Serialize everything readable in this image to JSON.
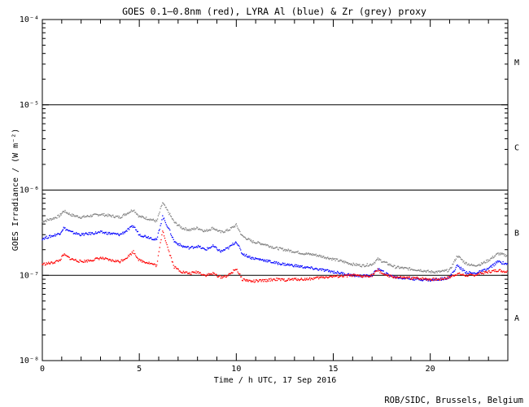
{
  "chart_data": {
    "type": "scatter",
    "title": "GOES 0.1–0.8nm (red), LYRA Al (blue) & Zr (grey) proxy",
    "xlabel": "Time / h UTC, 17 Sep 2016",
    "ylabel": "GOES Irradiance / (W m⁻²)",
    "credit": "ROB/SIDC, Brussels, Belgium",
    "xlim": [
      0,
      24
    ],
    "ylim": [
      1e-08,
      0.0001
    ],
    "yscale": "log",
    "x_ticks": [
      0,
      5,
      10,
      15,
      20
    ],
    "x_tick_labels": [
      "0",
      "5",
      "10",
      "15",
      "20"
    ],
    "y_ticks": [
      1e-08,
      1e-07,
      1e-06,
      1e-05,
      0.0001
    ],
    "y_tick_labels": [
      "10⁻⁸",
      "10⁻⁷",
      "10⁻⁶",
      "10⁻⁵",
      "10⁻⁴"
    ],
    "reference_lines": [
      1e-07,
      1e-06,
      1e-05
    ],
    "flare_classes": [
      {
        "label": "A",
        "y": 3.2e-08
      },
      {
        "label": "B",
        "y": 3.2e-07
      },
      {
        "label": "C",
        "y": 3.2e-06
      },
      {
        "label": "M",
        "y": 3.2e-05
      }
    ],
    "series": [
      {
        "color": "#808080",
        "x": [
          0,
          0.5,
          0.9,
          1.1,
          1.5,
          2.0,
          2.5,
          3.0,
          3.5,
          4.0,
          4.4,
          4.7,
          5.0,
          5.5,
          5.9,
          6.2,
          6.5,
          6.8,
          7.2,
          7.6,
          8.0,
          8.4,
          8.8,
          9.2,
          9.6,
          10.0,
          10.3,
          10.8,
          11.5,
          12.0,
          12.5,
          13.0,
          13.5,
          14.0,
          14.5,
          15.0,
          15.5,
          16.0,
          16.5,
          17.0,
          17.3,
          17.7,
          18.2,
          18.8,
          19.5,
          20.0,
          20.5,
          21.0,
          21.4,
          21.8,
          22.2,
          22.6,
          23.0,
          23.5,
          24.0
        ],
        "y": [
          4.3e-07,
          4.6e-07,
          5e-07,
          5.7e-07,
          5.1e-07,
          4.8e-07,
          5e-07,
          5.2e-07,
          5e-07,
          4.8e-07,
          5.4e-07,
          5.9e-07,
          4.9e-07,
          4.6e-07,
          4.3e-07,
          7.1e-07,
          5.5e-07,
          4.2e-07,
          3.6e-07,
          3.4e-07,
          3.6e-07,
          3.3e-07,
          3.6e-07,
          3.2e-07,
          3.4e-07,
          3.9e-07,
          2.9e-07,
          2.5e-07,
          2.3e-07,
          2.1e-07,
          2e-07,
          1.9e-07,
          1.8e-07,
          1.75e-07,
          1.65e-07,
          1.55e-07,
          1.45e-07,
          1.35e-07,
          1.3e-07,
          1.35e-07,
          1.55e-07,
          1.4e-07,
          1.25e-07,
          1.2e-07,
          1.15e-07,
          1.1e-07,
          1.1e-07,
          1.15e-07,
          1.7e-07,
          1.4e-07,
          1.3e-07,
          1.35e-07,
          1.5e-07,
          1.8e-07,
          1.7e-07
        ]
      },
      {
        "color": "#0000ff",
        "x": [
          0,
          0.5,
          0.9,
          1.1,
          1.5,
          2.0,
          2.5,
          3.0,
          3.5,
          4.0,
          4.4,
          4.7,
          5.0,
          5.5,
          5.9,
          6.2,
          6.5,
          6.8,
          7.2,
          7.6,
          8.0,
          8.4,
          8.8,
          9.2,
          9.6,
          10.0,
          10.3,
          10.8,
          11.5,
          12.0,
          12.5,
          13.0,
          13.5,
          14.0,
          14.5,
          15.0,
          15.5,
          16.0,
          16.5,
          17.0,
          17.3,
          17.7,
          18.2,
          18.8,
          19.5,
          20.0,
          20.5,
          21.0,
          21.4,
          21.8,
          22.2,
          22.6,
          23.0,
          23.5,
          24.0
        ],
        "y": [
          2.7e-07,
          2.9e-07,
          3.1e-07,
          3.6e-07,
          3.2e-07,
          3e-07,
          3.1e-07,
          3.2e-07,
          3.1e-07,
          3e-07,
          3.4e-07,
          3.8e-07,
          3e-07,
          2.8e-07,
          2.6e-07,
          4.9e-07,
          3.6e-07,
          2.5e-07,
          2.2e-07,
          2.1e-07,
          2.2e-07,
          2e-07,
          2.2e-07,
          1.9e-07,
          2.1e-07,
          2.5e-07,
          1.8e-07,
          1.6e-07,
          1.5e-07,
          1.4e-07,
          1.35e-07,
          1.3e-07,
          1.25e-07,
          1.2e-07,
          1.15e-07,
          1.1e-07,
          1.05e-07,
          1e-07,
          9.8e-08,
          1e-07,
          1.2e-07,
          1.05e-07,
          9.5e-08,
          9.2e-08,
          9e-08,
          8.8e-08,
          9e-08,
          9.5e-08,
          1.3e-07,
          1.1e-07,
          1.05e-07,
          1.1e-07,
          1.2e-07,
          1.45e-07,
          1.35e-07
        ]
      },
      {
        "color": "#ff0000",
        "x": [
          0,
          0.5,
          0.9,
          1.1,
          1.5,
          2.0,
          2.5,
          3.0,
          3.5,
          4.0,
          4.4,
          4.7,
          5.0,
          5.5,
          5.9,
          6.2,
          6.5,
          6.8,
          7.2,
          7.6,
          8.0,
          8.4,
          8.8,
          9.2,
          9.6,
          10.0,
          10.3,
          10.8,
          11.5,
          12.0,
          12.5,
          13.0,
          13.5,
          14.0,
          14.5,
          15.0,
          15.5,
          16.0,
          16.5,
          17.0,
          17.3,
          17.7,
          18.2,
          18.8,
          19.5,
          20.0,
          20.5,
          21.0,
          21.4,
          21.8,
          22.2,
          22.6,
          23.0,
          23.5,
          24.0
        ],
        "y": [
          1.35e-07,
          1.4e-07,
          1.5e-07,
          1.75e-07,
          1.55e-07,
          1.45e-07,
          1.5e-07,
          1.6e-07,
          1.5e-07,
          1.45e-07,
          1.65e-07,
          1.9e-07,
          1.5e-07,
          1.4e-07,
          1.3e-07,
          3.4e-07,
          2e-07,
          1.25e-07,
          1.1e-07,
          1.05e-07,
          1.1e-07,
          1e-07,
          1.05e-07,
          9.5e-08,
          1e-07,
          1.2e-07,
          9e-08,
          8.5e-08,
          8.7e-08,
          9e-08,
          8.8e-08,
          9e-08,
          9e-08,
          9.2e-08,
          9.5e-08,
          9.7e-08,
          9.8e-08,
          1e-07,
          9.7e-08,
          1e-07,
          1.15e-07,
          1e-07,
          9.5e-08,
          9.3e-08,
          9.2e-08,
          9e-08,
          9e-08,
          9.5e-08,
          1.05e-07,
          1e-07,
          1e-07,
          1.05e-07,
          1.1e-07,
          1.15e-07,
          1.1e-07
        ]
      }
    ]
  }
}
